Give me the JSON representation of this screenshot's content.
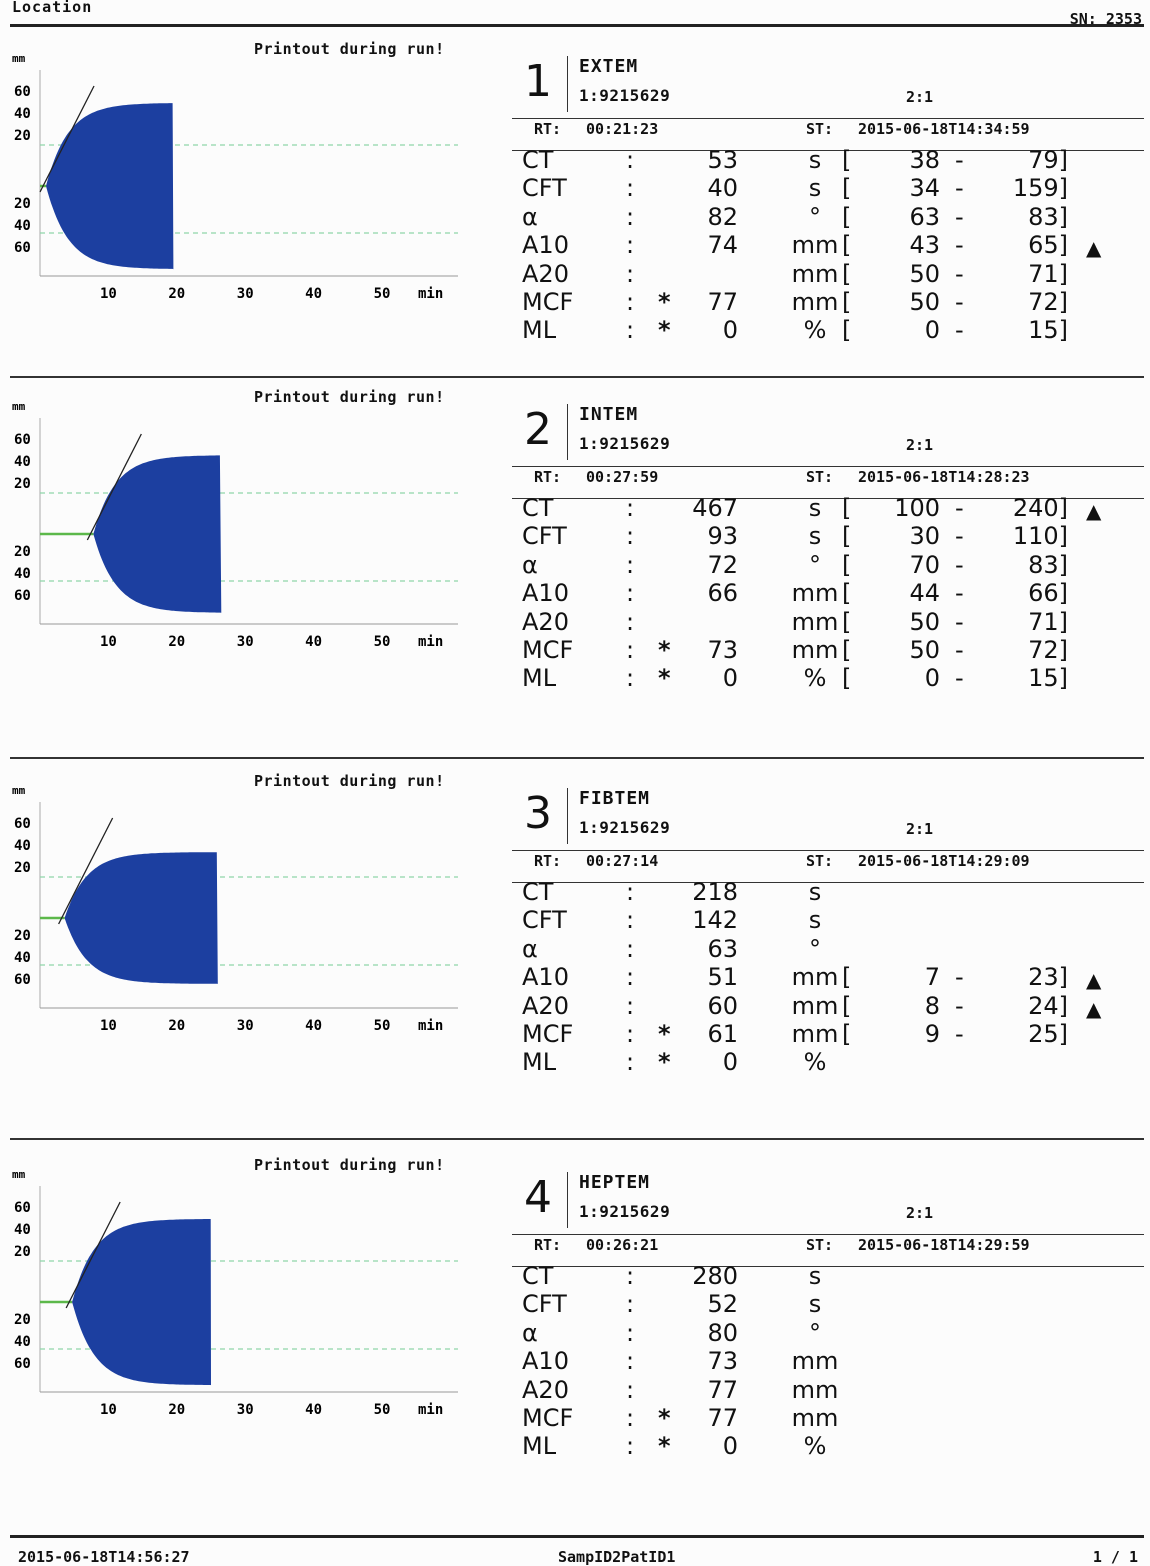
{
  "header": {
    "location": "Location",
    "sn": "SN: 2353"
  },
  "printout_label": "Printout during run!",
  "chart_axis": {
    "y_unit": "mm",
    "y_ticks_upper": [
      "60",
      "40",
      "20"
    ],
    "y_ticks_lower": [
      "20",
      "40",
      "60"
    ],
    "x_ticks": [
      "10",
      "20",
      "30",
      "40",
      "50"
    ],
    "x_unit": "min"
  },
  "chart_data": [
    {
      "type": "area",
      "test": "EXTEM",
      "ct_min": 0.88,
      "end_min": 19.5,
      "mcf_mm": 77
    },
    {
      "type": "area",
      "test": "INTEM",
      "ct_min": 7.8,
      "end_min": 26.5,
      "mcf_mm": 73
    },
    {
      "type": "area",
      "test": "FIBTEM",
      "ct_min": 3.6,
      "end_min": 26.0,
      "mcf_mm": 61
    },
    {
      "type": "area",
      "test": "HEPTEM",
      "ct_min": 4.7,
      "end_min": 25.0,
      "mcf_mm": 77
    }
  ],
  "tests": [
    {
      "number": "1",
      "name": "EXTEM",
      "id": "1:9215629",
      "ratio": "2:1",
      "rt_label": "RT:",
      "rt": "00:21:23",
      "st_label": "ST:",
      "st": "2015-06-18T14:34:59",
      "params": [
        {
          "name": "CT",
          "star": "",
          "value": "53",
          "unit": "s",
          "bracket": "[",
          "lo": "38",
          "dash": "-",
          "hi": "79]",
          "flag": ""
        },
        {
          "name": "CFT",
          "star": "",
          "value": "40",
          "unit": "s",
          "bracket": "[",
          "lo": "34",
          "dash": "-",
          "hi": "159]",
          "flag": ""
        },
        {
          "name": "α",
          "star": "",
          "value": "82",
          "unit": "°",
          "bracket": "[",
          "lo": "63",
          "dash": "-",
          "hi": "83]",
          "flag": ""
        },
        {
          "name": "A10",
          "star": "",
          "value": "74",
          "unit": "mm",
          "bracket": "[",
          "lo": "43",
          "dash": "-",
          "hi": "65]",
          "flag": "▲"
        },
        {
          "name": "A20",
          "star": "",
          "value": "",
          "unit": "mm",
          "bracket": "[",
          "lo": "50",
          "dash": "-",
          "hi": "71]",
          "flag": ""
        },
        {
          "name": "MCF",
          "star": "*",
          "value": "77",
          "unit": "mm",
          "bracket": "[",
          "lo": "50",
          "dash": "-",
          "hi": "72]",
          "flag": ""
        },
        {
          "name": "ML",
          "star": "*",
          "value": "0",
          "unit": "%",
          "bracket": "[",
          "lo": "0",
          "dash": "-",
          "hi": "15]",
          "flag": ""
        }
      ]
    },
    {
      "number": "2",
      "name": "INTEM",
      "id": "1:9215629",
      "ratio": "2:1",
      "rt_label": "RT:",
      "rt": "00:27:59",
      "st_label": "ST:",
      "st": "2015-06-18T14:28:23",
      "params": [
        {
          "name": "CT",
          "star": "",
          "value": "467",
          "unit": "s",
          "bracket": "[",
          "lo": "100",
          "dash": "-",
          "hi": "240]",
          "flag": "▲"
        },
        {
          "name": "CFT",
          "star": "",
          "value": "93",
          "unit": "s",
          "bracket": "[",
          "lo": "30",
          "dash": "-",
          "hi": "110]",
          "flag": ""
        },
        {
          "name": "α",
          "star": "",
          "value": "72",
          "unit": "°",
          "bracket": "[",
          "lo": "70",
          "dash": "-",
          "hi": "83]",
          "flag": ""
        },
        {
          "name": "A10",
          "star": "",
          "value": "66",
          "unit": "mm",
          "bracket": "[",
          "lo": "44",
          "dash": "-",
          "hi": "66]",
          "flag": ""
        },
        {
          "name": "A20",
          "star": "",
          "value": "",
          "unit": "mm",
          "bracket": "[",
          "lo": "50",
          "dash": "-",
          "hi": "71]",
          "flag": ""
        },
        {
          "name": "MCF",
          "star": "*",
          "value": "73",
          "unit": "mm",
          "bracket": "[",
          "lo": "50",
          "dash": "-",
          "hi": "72]",
          "flag": ""
        },
        {
          "name": "ML",
          "star": "*",
          "value": "0",
          "unit": "%",
          "bracket": "[",
          "lo": "0",
          "dash": "-",
          "hi": "15]",
          "flag": ""
        }
      ]
    },
    {
      "number": "3",
      "name": "FIBTEM",
      "id": "1:9215629",
      "ratio": "2:1",
      "rt_label": "RT:",
      "rt": "00:27:14",
      "st_label": "ST:",
      "st": "2015-06-18T14:29:09",
      "params": [
        {
          "name": "CT",
          "star": "",
          "value": "218",
          "unit": "s",
          "bracket": "",
          "lo": "",
          "dash": "",
          "hi": "",
          "flag": ""
        },
        {
          "name": "CFT",
          "star": "",
          "value": "142",
          "unit": "s",
          "bracket": "",
          "lo": "",
          "dash": "",
          "hi": "",
          "flag": ""
        },
        {
          "name": "α",
          "star": "",
          "value": "63",
          "unit": "°",
          "bracket": "",
          "lo": "",
          "dash": "",
          "hi": "",
          "flag": ""
        },
        {
          "name": "A10",
          "star": "",
          "value": "51",
          "unit": "mm",
          "bracket": "[",
          "lo": "7",
          "dash": "-",
          "hi": "23]",
          "flag": "▲"
        },
        {
          "name": "A20",
          "star": "",
          "value": "60",
          "unit": "mm",
          "bracket": "[",
          "lo": "8",
          "dash": "-",
          "hi": "24]",
          "flag": "▲"
        },
        {
          "name": "MCF",
          "star": "*",
          "value": "61",
          "unit": "mm",
          "bracket": "[",
          "lo": "9",
          "dash": "-",
          "hi": "25]",
          "flag": ""
        },
        {
          "name": "ML",
          "star": "*",
          "value": "0",
          "unit": "%",
          "bracket": "",
          "lo": "",
          "dash": "",
          "hi": "",
          "flag": ""
        }
      ]
    },
    {
      "number": "4",
      "name": "HEPTEM",
      "id": "1:9215629",
      "ratio": "2:1",
      "rt_label": "RT:",
      "rt": "00:26:21",
      "st_label": "ST:",
      "st": "2015-06-18T14:29:59",
      "params": [
        {
          "name": "CT",
          "star": "",
          "value": "280",
          "unit": "s",
          "bracket": "",
          "lo": "",
          "dash": "",
          "hi": "",
          "flag": ""
        },
        {
          "name": "CFT",
          "star": "",
          "value": "52",
          "unit": "s",
          "bracket": "",
          "lo": "",
          "dash": "",
          "hi": "",
          "flag": ""
        },
        {
          "name": "α",
          "star": "",
          "value": "80",
          "unit": "°",
          "bracket": "",
          "lo": "",
          "dash": "",
          "hi": "",
          "flag": ""
        },
        {
          "name": "A10",
          "star": "",
          "value": "73",
          "unit": "mm",
          "bracket": "",
          "lo": "",
          "dash": "",
          "hi": "",
          "flag": ""
        },
        {
          "name": "A20",
          "star": "",
          "value": "77",
          "unit": "mm",
          "bracket": "",
          "lo": "",
          "dash": "",
          "hi": "",
          "flag": ""
        },
        {
          "name": "MCF",
          "star": "*",
          "value": "77",
          "unit": "mm",
          "bracket": "",
          "lo": "",
          "dash": "",
          "hi": "",
          "flag": ""
        },
        {
          "name": "ML",
          "star": "*",
          "value": "0",
          "unit": "%",
          "bracket": "",
          "lo": "",
          "dash": "",
          "hi": "",
          "flag": ""
        }
      ]
    }
  ],
  "footer": {
    "datetime": "2015-06-18T14:56:27",
    "sample": "SampID2PatID1",
    "page": "1 / 1"
  },
  "colors": {
    "trace": "#1c3fa0",
    "pink": "#d8449a",
    "green": "#5cb84a",
    "dashed": "#8fd6a8"
  }
}
